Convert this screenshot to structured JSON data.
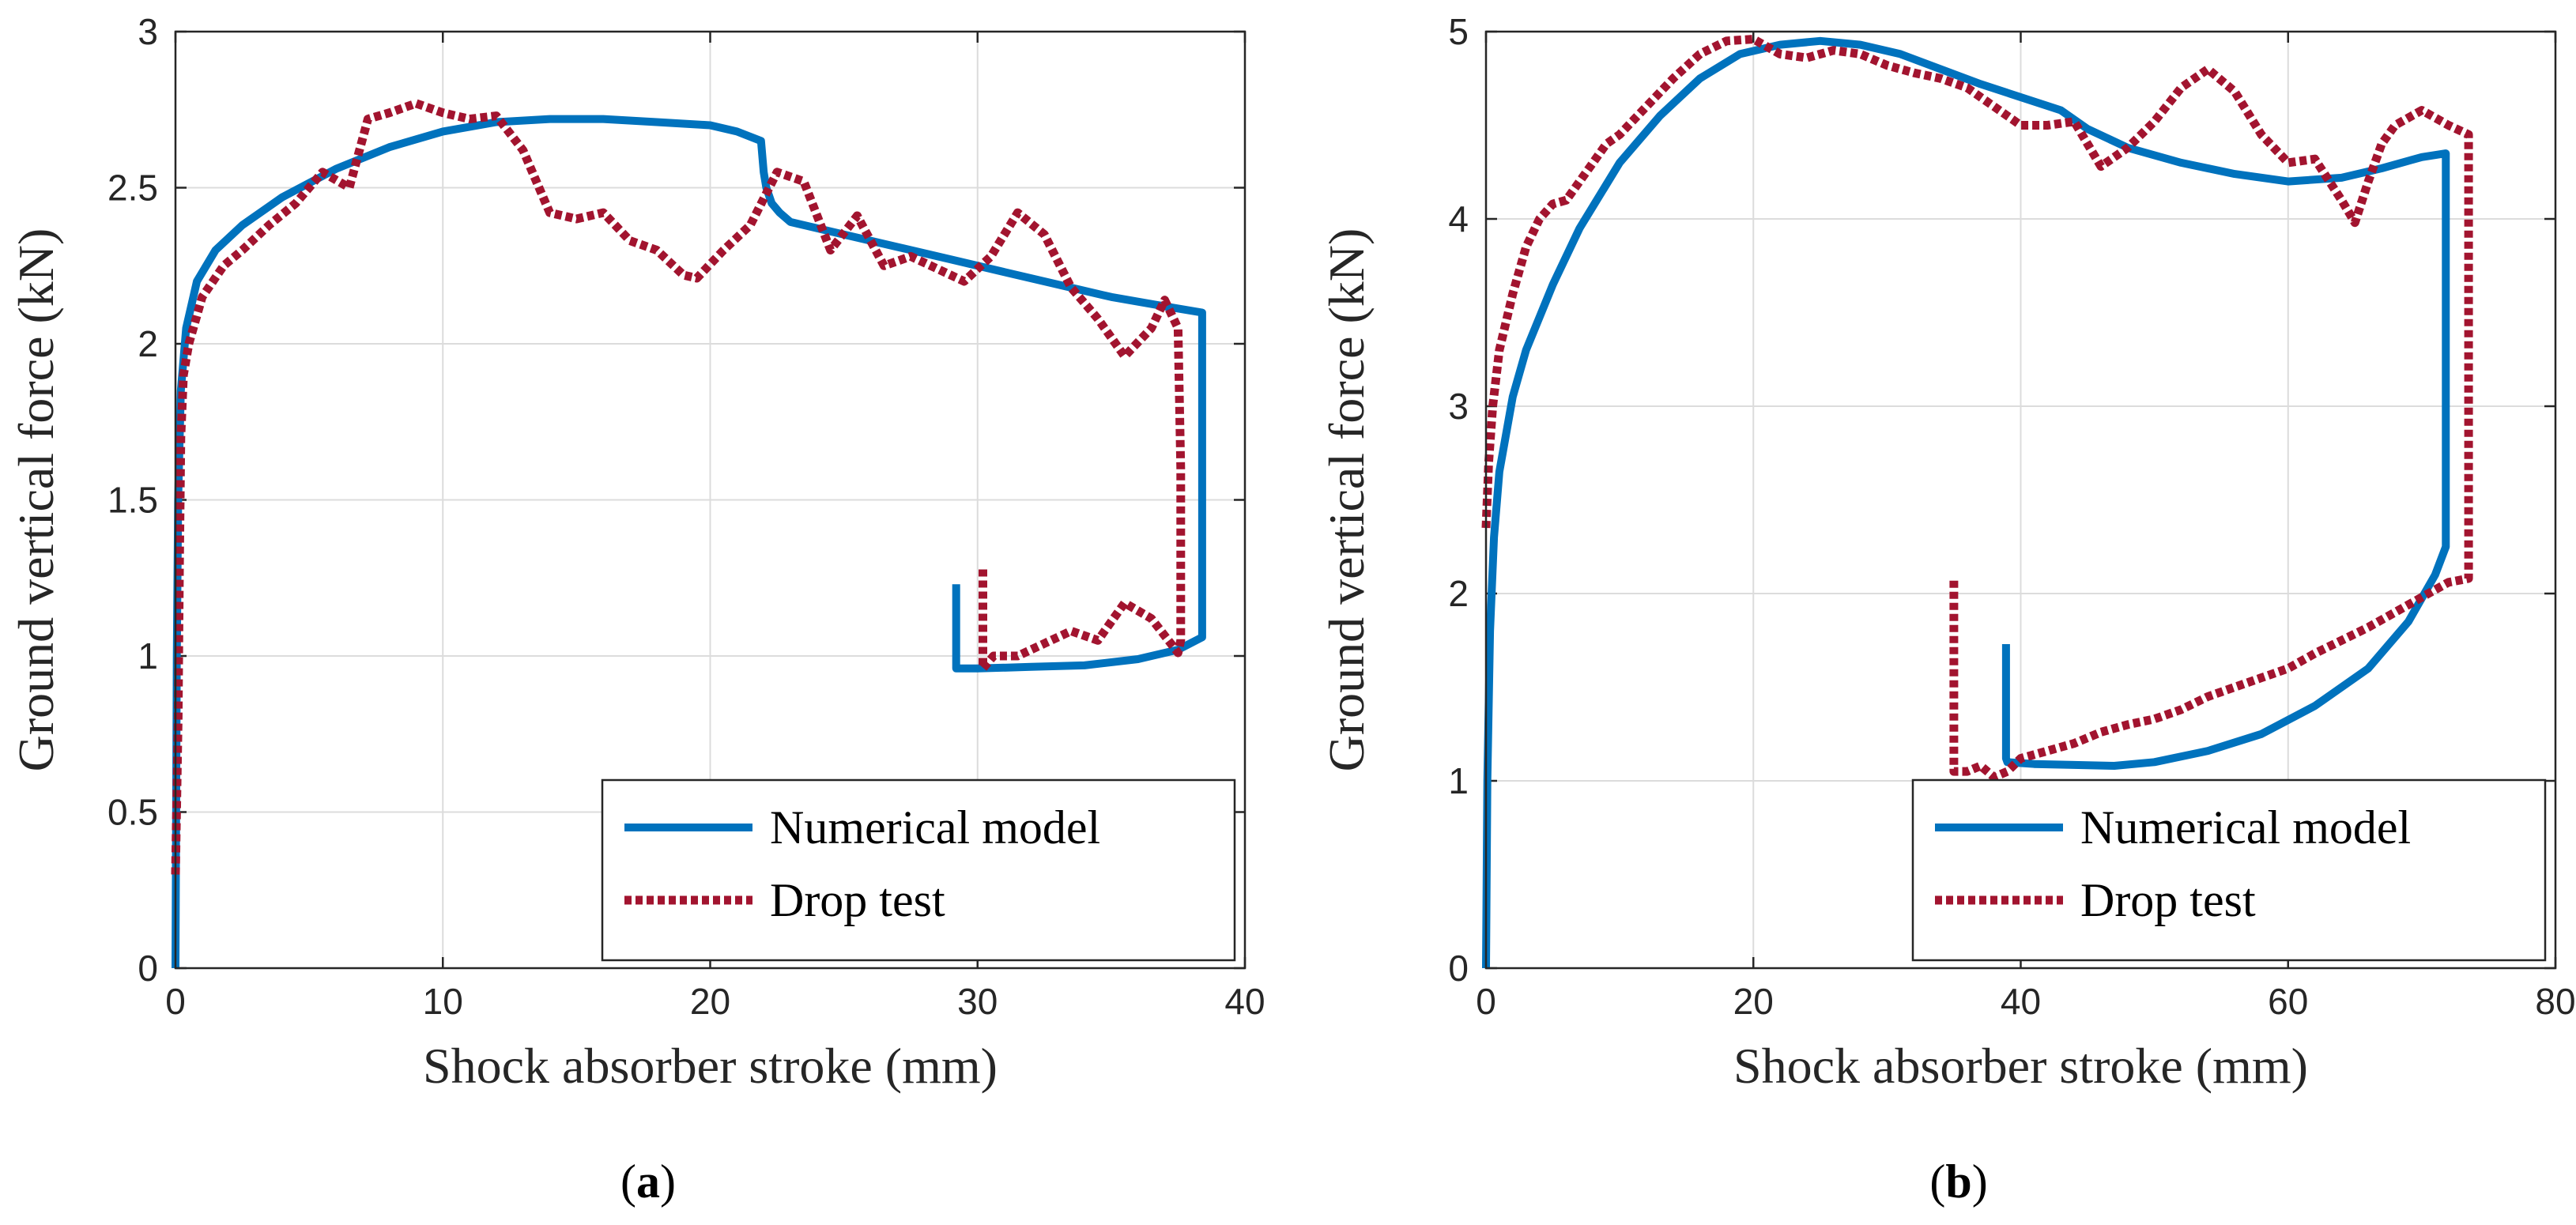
{
  "colors": {
    "numerical": "#0072BD",
    "drop_test": "#A2142F",
    "grid": "#DCDCDC",
    "axis": "#262626"
  },
  "chart_data": [
    {
      "type": "line",
      "caption_letter": "a",
      "xlabel": "Shock absorber stroke (mm)",
      "ylabel": "Ground vertical force (kN)",
      "xlim": [
        0,
        40
      ],
      "ylim": [
        0,
        3
      ],
      "xticks": [
        0,
        10,
        20,
        30,
        40
      ],
      "xtick_labels": [
        "0",
        "10",
        "20",
        "30",
        "40"
      ],
      "yticks": [
        0,
        0.5,
        1,
        1.5,
        2,
        2.5,
        3
      ],
      "ytick_labels": [
        "0",
        "0.5",
        "1",
        "1.5",
        "2",
        "2.5",
        "3"
      ],
      "grid": true,
      "legend_position": "bottom-right",
      "series": [
        {
          "name": "Numerical model",
          "style": "solid",
          "x": [
            0,
            0.05,
            0.1,
            0.2,
            0.4,
            0.8,
            1.5,
            2.5,
            4,
            6,
            8,
            10,
            12,
            14,
            16,
            18,
            20,
            21,
            21.9,
            22.0,
            22.1,
            22.3,
            22.6,
            23,
            25,
            27,
            29,
            31,
            33,
            35,
            37,
            38.4,
            38.4,
            38.4,
            37.5,
            36,
            34,
            32,
            30,
            29.2,
            29.2,
            29.2
          ],
          "y": [
            0,
            1.0,
            1.5,
            1.85,
            2.05,
            2.2,
            2.3,
            2.38,
            2.47,
            2.56,
            2.63,
            2.68,
            2.71,
            2.72,
            2.72,
            2.71,
            2.7,
            2.68,
            2.65,
            2.55,
            2.5,
            2.45,
            2.42,
            2.39,
            2.35,
            2.31,
            2.27,
            2.23,
            2.19,
            2.15,
            2.12,
            2.1,
            1.5,
            1.06,
            1.02,
            0.99,
            0.97,
            0.965,
            0.96,
            0.96,
            1.1,
            1.23
          ]
        },
        {
          "name": "Drop test",
          "style": "dotted",
          "x": [
            0,
            0.05,
            0.1,
            0.15,
            0.2,
            0.3,
            0.5,
            1,
            1.8,
            2.5,
            3.5,
            4.5,
            5.5,
            6.5,
            7.2,
            8,
            9,
            10,
            11,
            12,
            13,
            14,
            15,
            16,
            17,
            18,
            19,
            19.5,
            20.5,
            21.5,
            22.5,
            23.5,
            24.5,
            25.5,
            26.5,
            27.5,
            28.5,
            29.5,
            30.5,
            31.5,
            32.5,
            33.5,
            34.5,
            35.5,
            36.5,
            37,
            37.5,
            37.6,
            37.6,
            37.5,
            36.5,
            35.5,
            34.5,
            33.5,
            32.5,
            31.5,
            30.6,
            30.2,
            30.2,
            30.2
          ],
          "y": [
            0.3,
            0.55,
            0.8,
            1.3,
            1.7,
            1.9,
            2.0,
            2.15,
            2.25,
            2.3,
            2.38,
            2.45,
            2.55,
            2.5,
            2.72,
            2.74,
            2.77,
            2.74,
            2.72,
            2.73,
            2.62,
            2.42,
            2.4,
            2.42,
            2.33,
            2.3,
            2.22,
            2.21,
            2.3,
            2.38,
            2.55,
            2.52,
            2.3,
            2.41,
            2.25,
            2.28,
            2.24,
            2.2,
            2.28,
            2.42,
            2.35,
            2.18,
            2.08,
            1.96,
            2.05,
            2.14,
            2.05,
            1.6,
            1.05,
            1.01,
            1.12,
            1.17,
            1.05,
            1.08,
            1.04,
            1.0,
            1.0,
            0.96,
            1.1,
            1.28
          ]
        }
      ]
    },
    {
      "type": "line",
      "caption_letter": "b",
      "xlabel": "Shock absorber stroke (mm)",
      "ylabel": "Ground vertical force (kN)",
      "xlim": [
        0,
        80
      ],
      "ylim": [
        0,
        5
      ],
      "xticks": [
        0,
        20,
        40,
        60,
        80
      ],
      "xtick_labels": [
        "0",
        "20",
        "40",
        "60",
        "80"
      ],
      "yticks": [
        0,
        1,
        2,
        3,
        4,
        5
      ],
      "ytick_labels": [
        "0",
        "1",
        "2",
        "3",
        "4",
        "5"
      ],
      "grid": true,
      "legend_position": "bottom-right",
      "series": [
        {
          "name": "Numerical model",
          "style": "solid",
          "x": [
            0,
            0.1,
            0.3,
            0.6,
            1,
            2,
            3,
            5,
            7,
            10,
            13,
            16,
            19,
            22,
            25,
            28,
            31,
            34,
            37,
            40,
            43,
            45,
            48,
            52,
            56,
            60,
            64,
            67,
            70,
            71.8,
            71.8,
            71.8,
            71,
            69,
            66,
            62,
            58,
            54,
            50,
            47,
            44,
            41,
            39,
            38.9,
            38.9,
            38.9
          ],
          "y": [
            0,
            1.0,
            1.8,
            2.3,
            2.65,
            3.05,
            3.3,
            3.65,
            3.95,
            4.3,
            4.55,
            4.75,
            4.88,
            4.93,
            4.95,
            4.93,
            4.88,
            4.8,
            4.72,
            4.65,
            4.58,
            4.48,
            4.38,
            4.3,
            4.24,
            4.2,
            4.22,
            4.27,
            4.33,
            4.35,
            3.0,
            2.25,
            2.1,
            1.85,
            1.6,
            1.4,
            1.25,
            1.16,
            1.1,
            1.08,
            1.085,
            1.09,
            1.1,
            1.12,
            1.4,
            1.73
          ]
        },
        {
          "name": "Drop test",
          "style": "dotted",
          "x": [
            0,
            0.2,
            0.5,
            1,
            2,
            3,
            4,
            5,
            6,
            7,
            8,
            9,
            10,
            12,
            14,
            16,
            18,
            20,
            22,
            24,
            26,
            28,
            30,
            32,
            34,
            36,
            38,
            40,
            42,
            44,
            46,
            48,
            50,
            52,
            54,
            56,
            58,
            60,
            62,
            64,
            65,
            66,
            67,
            68,
            70,
            72,
            73.5,
            73.5,
            73.5,
            72,
            70,
            68,
            66,
            64,
            62,
            60,
            58,
            56,
            54,
            52,
            50,
            48,
            46,
            44,
            42,
            40,
            39,
            38,
            37,
            36,
            35,
            35,
            35
          ],
          "y": [
            2.35,
            2.7,
            3.0,
            3.3,
            3.6,
            3.85,
            4.0,
            4.08,
            4.1,
            4.2,
            4.3,
            4.4,
            4.45,
            4.6,
            4.75,
            4.88,
            4.95,
            4.96,
            4.88,
            4.86,
            4.9,
            4.88,
            4.82,
            4.78,
            4.75,
            4.7,
            4.6,
            4.5,
            4.5,
            4.52,
            4.28,
            4.38,
            4.52,
            4.7,
            4.8,
            4.68,
            4.45,
            4.3,
            4.32,
            4.1,
            3.98,
            4.2,
            4.4,
            4.5,
            4.58,
            4.5,
            4.45,
            3.0,
            2.08,
            2.06,
            1.98,
            1.9,
            1.82,
            1.75,
            1.68,
            1.6,
            1.55,
            1.5,
            1.45,
            1.38,
            1.33,
            1.3,
            1.26,
            1.2,
            1.16,
            1.12,
            1.05,
            1.02,
            1.08,
            1.05,
            1.05,
            1.6,
            2.08
          ]
        }
      ]
    }
  ]
}
